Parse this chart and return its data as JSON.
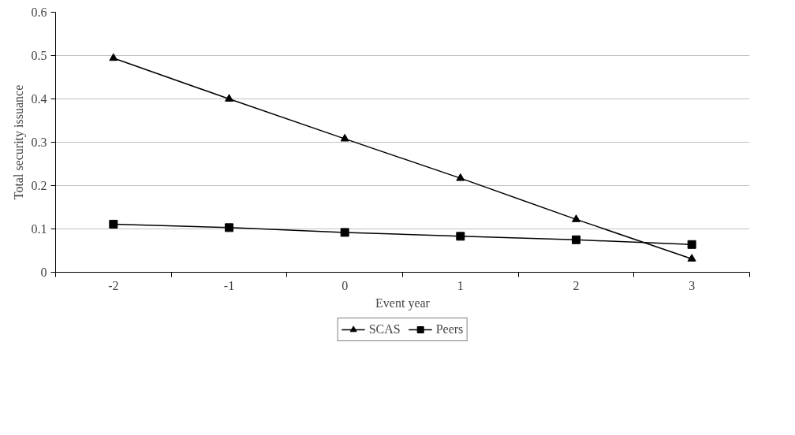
{
  "chart_data": {
    "type": "line",
    "xlabel": "Event year",
    "ylabel": "Total security issuance",
    "categories": [
      "-2",
      "-1",
      "0",
      "1",
      "2",
      "3"
    ],
    "series": [
      {
        "name": "SCAS",
        "color": "#000000",
        "marker": "triangle",
        "values": [
          0.494,
          0.4,
          0.308,
          0.217,
          0.122,
          0.031
        ]
      },
      {
        "name": "Peers",
        "color": "#000000",
        "marker": "square",
        "values": [
          0.111,
          0.103,
          0.092,
          0.083,
          0.075,
          0.064
        ]
      }
    ],
    "ylim": [
      0,
      0.6
    ],
    "yticks": [
      0,
      0.1,
      0.2,
      0.3,
      0.4,
      0.5,
      0.6
    ],
    "grid": "y",
    "legend": "bottom",
    "line_style": "solid"
  }
}
